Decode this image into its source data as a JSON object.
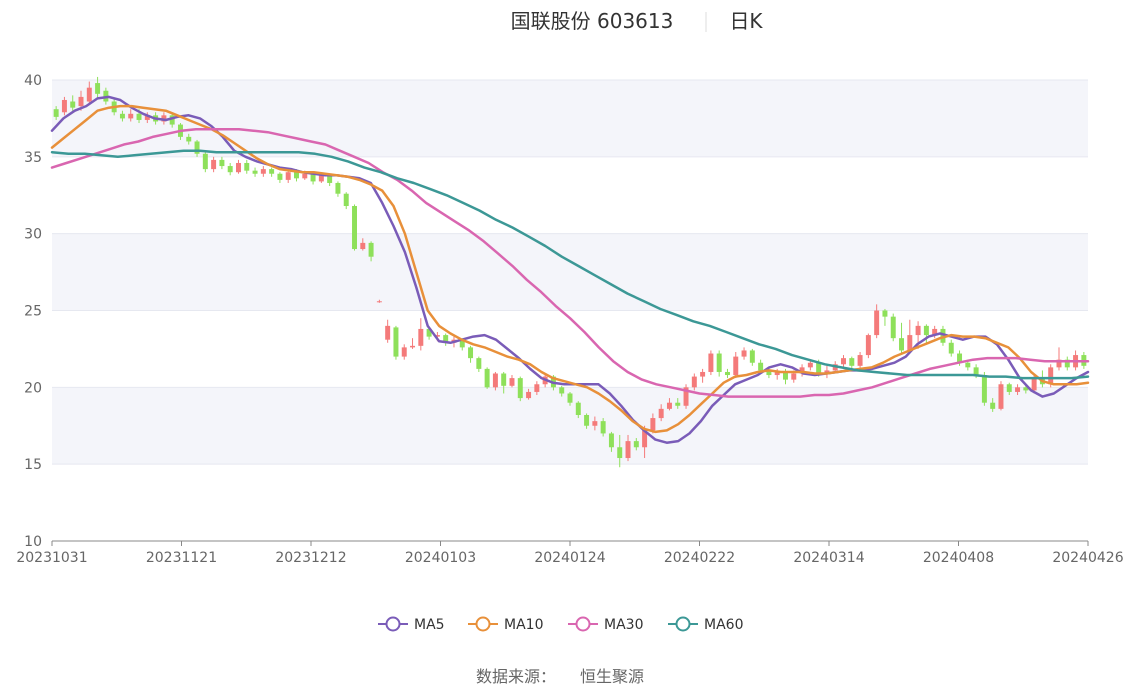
{
  "chart_data": {
    "type": "candlestick",
    "title": "国联股份 603613",
    "subtitle": "日K",
    "source_label": "数据来源：",
    "source_name": "恒生聚源",
    "x_labels": [
      "20231031",
      "20231121",
      "20231212",
      "20240103",
      "20240124",
      "20240222",
      "20240314",
      "20240408",
      "20240426"
    ],
    "y_ticks": [
      10,
      15,
      20,
      25,
      30,
      35,
      40
    ],
    "ylim": [
      10,
      40
    ],
    "grid": "alternating horizontal bands",
    "legend_position": "bottom",
    "colors": {
      "up": "#f47a7a",
      "down": "#8ee05a",
      "band": "#f4f5fa",
      "axis": "#888888"
    },
    "series": [
      {
        "name": "MA5",
        "color": "#7a5cb8",
        "values": [
          36.7,
          37.5,
          38.0,
          38.3,
          38.8,
          38.9,
          38.7,
          38.2,
          37.8,
          37.5,
          37.4,
          37.6,
          37.7,
          37.5,
          37.0,
          36.3,
          35.4,
          35.0,
          34.7,
          34.5,
          34.3,
          34.2,
          34.0,
          33.9,
          33.8,
          33.8,
          33.7,
          33.6,
          33.3,
          32.0,
          30.5,
          28.8,
          26.5,
          24.0,
          23.0,
          22.9,
          23.1,
          23.3,
          23.4,
          23.1,
          22.5,
          21.9,
          21.2,
          20.6,
          20.3,
          20.2,
          20.2,
          20.2,
          20.2,
          19.6,
          18.8,
          17.9,
          17.2,
          16.6,
          16.4,
          16.5,
          17.0,
          17.8,
          18.8,
          19.5,
          20.2,
          20.5,
          20.8,
          21.3,
          21.5,
          21.3,
          20.9,
          20.8,
          20.9,
          21.0,
          21.1,
          21.1,
          21.2,
          21.4,
          21.6,
          22.0,
          22.8,
          23.3,
          23.5,
          23.3,
          23.1,
          23.3,
          23.3,
          22.8,
          21.8,
          20.6,
          19.8,
          19.4,
          19.6,
          20.1,
          20.6,
          21.0
        ]
      },
      {
        "name": "MA10",
        "color": "#e8903a",
        "values": [
          35.6,
          36.2,
          36.8,
          37.4,
          38.0,
          38.2,
          38.3,
          38.3,
          38.2,
          38.1,
          38.0,
          37.7,
          37.4,
          37.1,
          36.8,
          36.4,
          35.9,
          35.4,
          34.9,
          34.5,
          34.2,
          34.1,
          34.0,
          34.0,
          33.9,
          33.8,
          33.7,
          33.5,
          33.2,
          32.8,
          31.8,
          30.0,
          27.5,
          25.0,
          24.0,
          23.5,
          23.1,
          22.8,
          22.6,
          22.3,
          22.0,
          21.8,
          21.5,
          21.0,
          20.6,
          20.4,
          20.2,
          20.0,
          19.6,
          19.1,
          18.5,
          17.8,
          17.3,
          17.1,
          17.2,
          17.6,
          18.2,
          18.9,
          19.6,
          20.3,
          20.7,
          20.8,
          21.0,
          21.1,
          21.0,
          21.0,
          21.0,
          20.9,
          20.9,
          21.0,
          21.1,
          21.2,
          21.3,
          21.6,
          22.0,
          22.3,
          22.6,
          22.9,
          23.2,
          23.4,
          23.3,
          23.3,
          23.2,
          22.9,
          22.6,
          21.9,
          21.0,
          20.4,
          20.2,
          20.2,
          20.2,
          20.3
        ]
      },
      {
        "name": "MA30",
        "color": "#d966b0",
        "values": [
          34.3,
          34.6,
          34.9,
          35.2,
          35.5,
          35.8,
          36.0,
          36.3,
          36.5,
          36.7,
          36.8,
          36.8,
          36.8,
          36.8,
          36.7,
          36.6,
          36.4,
          36.2,
          36.0,
          35.8,
          35.4,
          35.0,
          34.6,
          34.0,
          33.5,
          32.8,
          32.0,
          31.4,
          30.8,
          30.2,
          29.5,
          28.7,
          27.9,
          27.0,
          26.2,
          25.3,
          24.5,
          23.6,
          22.6,
          21.7,
          21.0,
          20.5,
          20.2,
          20.0,
          19.8,
          19.6,
          19.5,
          19.4,
          19.4,
          19.4,
          19.4,
          19.4,
          19.4,
          19.5,
          19.5,
          19.6,
          19.8,
          20.0,
          20.3,
          20.6,
          20.9,
          21.2,
          21.4,
          21.6,
          21.8,
          21.9,
          21.9,
          21.9,
          21.8,
          21.7,
          21.7,
          21.7,
          21.7
        ]
      },
      {
        "name": "MA60",
        "color": "#3c9896",
        "values": [
          35.3,
          35.2,
          35.2,
          35.1,
          35.0,
          35.1,
          35.2,
          35.3,
          35.4,
          35.4,
          35.3,
          35.3,
          35.3,
          35.3,
          35.3,
          35.3,
          35.2,
          35.0,
          34.7,
          34.3,
          34.0,
          33.6,
          33.3,
          32.9,
          32.5,
          32.0,
          31.5,
          30.9,
          30.4,
          29.8,
          29.2,
          28.5,
          27.9,
          27.3,
          26.7,
          26.1,
          25.6,
          25.1,
          24.7,
          24.3,
          24.0,
          23.6,
          23.2,
          22.8,
          22.5,
          22.1,
          21.8,
          21.5,
          21.3,
          21.1,
          21.0,
          20.9,
          20.8,
          20.8,
          20.8,
          20.8,
          20.8,
          20.7,
          20.7,
          20.6,
          20.6,
          20.6,
          20.6,
          20.7
        ]
      }
    ],
    "candles": [
      [
        38.1,
        37.6,
        38.3,
        37.4
      ],
      [
        37.9,
        38.7,
        38.9,
        37.7
      ],
      [
        38.6,
        38.2,
        39.0,
        37.9
      ],
      [
        38.3,
        38.9,
        39.3,
        38.0
      ],
      [
        38.6,
        39.5,
        39.9,
        38.4
      ],
      [
        39.8,
        39.1,
        40.2,
        38.8
      ],
      [
        39.3,
        38.6,
        39.5,
        38.4
      ],
      [
        38.6,
        37.9,
        38.8,
        37.7
      ],
      [
        37.8,
        37.5,
        38.0,
        37.3
      ],
      [
        37.5,
        37.8,
        38.1,
        37.3
      ],
      [
        37.8,
        37.4,
        38.1,
        37.2
      ],
      [
        37.4,
        37.7,
        37.9,
        37.2
      ],
      [
        37.7,
        37.3,
        37.9,
        37.1
      ],
      [
        37.3,
        37.7,
        37.9,
        37.1
      ],
      [
        37.7,
        37.1,
        37.8,
        36.9
      ],
      [
        37.1,
        36.3,
        37.2,
        36.1
      ],
      [
        36.3,
        36.0,
        36.5,
        35.8
      ],
      [
        36.0,
        35.2,
        36.1,
        35.0
      ],
      [
        35.2,
        34.2,
        35.3,
        34.0
      ],
      [
        34.2,
        34.8,
        35.0,
        34.0
      ],
      [
        34.8,
        34.4,
        35.0,
        34.2
      ],
      [
        34.4,
        34.0,
        34.6,
        33.8
      ],
      [
        34.0,
        34.6,
        34.8,
        33.9
      ],
      [
        34.6,
        34.1,
        34.8,
        33.9
      ],
      [
        34.1,
        33.9,
        34.3,
        33.7
      ],
      [
        33.9,
        34.2,
        34.4,
        33.7
      ],
      [
        34.2,
        33.9,
        34.3,
        33.7
      ],
      [
        33.9,
        33.5,
        34.0,
        33.3
      ],
      [
        33.5,
        34.0,
        34.2,
        33.3
      ],
      [
        34.0,
        33.6,
        34.2,
        33.4
      ],
      [
        33.6,
        33.9,
        34.1,
        33.5
      ],
      [
        33.9,
        33.4,
        34.0,
        33.2
      ],
      [
        33.4,
        33.8,
        34.0,
        33.3
      ],
      [
        33.8,
        33.3,
        33.9,
        33.1
      ],
      [
        33.3,
        32.6,
        33.4,
        32.4
      ],
      [
        32.6,
        31.8,
        32.7,
        31.6
      ],
      [
        31.8,
        29.0,
        31.9,
        28.9
      ],
      [
        29.0,
        29.4,
        29.7,
        28.9
      ],
      [
        29.4,
        28.5,
        29.5,
        28.2
      ],
      [
        25.6,
        25.6,
        25.7,
        25.5
      ],
      [
        23.1,
        24.0,
        24.4,
        22.9
      ],
      [
        23.9,
        22.0,
        24.0,
        21.8
      ],
      [
        22.0,
        22.6,
        22.8,
        21.8
      ],
      [
        22.6,
        22.7,
        23.2,
        22.5
      ],
      [
        22.7,
        23.8,
        24.5,
        22.4
      ],
      [
        23.8,
        23.3,
        23.9,
        23.1
      ],
      [
        23.3,
        23.4,
        23.6,
        23.0
      ],
      [
        23.4,
        22.9,
        23.5,
        22.7
      ],
      [
        22.9,
        23.1,
        23.3,
        22.6
      ],
      [
        23.1,
        22.6,
        23.2,
        22.4
      ],
      [
        22.6,
        21.9,
        22.7,
        21.6
      ],
      [
        21.9,
        21.2,
        22.0,
        21.0
      ],
      [
        21.2,
        20.0,
        21.3,
        19.9
      ],
      [
        20.0,
        20.9,
        21.0,
        19.8
      ],
      [
        20.9,
        20.1,
        21.0,
        19.6
      ],
      [
        20.1,
        20.6,
        20.8,
        20.0
      ],
      [
        20.6,
        19.3,
        20.7,
        19.1
      ],
      [
        19.3,
        19.7,
        19.9,
        19.2
      ],
      [
        19.7,
        20.2,
        20.4,
        19.5
      ],
      [
        20.2,
        20.7,
        20.9,
        20.0
      ],
      [
        20.7,
        20.0,
        20.8,
        19.8
      ],
      [
        20.0,
        19.6,
        20.1,
        19.4
      ],
      [
        19.6,
        19.0,
        19.7,
        18.8
      ],
      [
        19.0,
        18.2,
        19.1,
        18.0
      ],
      [
        18.2,
        17.5,
        18.3,
        17.3
      ],
      [
        17.5,
        17.8,
        18.1,
        17.2
      ],
      [
        17.8,
        17.0,
        18.0,
        16.8
      ],
      [
        17.0,
        16.1,
        17.1,
        15.8
      ],
      [
        16.1,
        15.4,
        16.9,
        14.8
      ],
      [
        15.4,
        16.5,
        16.9,
        15.2
      ],
      [
        16.5,
        16.1,
        16.7,
        15.9
      ],
      [
        16.1,
        17.2,
        17.5,
        15.4
      ],
      [
        17.2,
        18.0,
        18.3,
        17.0
      ],
      [
        18.0,
        18.6,
        18.9,
        17.8
      ],
      [
        18.6,
        19.0,
        19.3,
        18.5
      ],
      [
        19.0,
        18.8,
        19.3,
        18.6
      ],
      [
        18.8,
        20.0,
        20.2,
        18.6
      ],
      [
        20.0,
        20.7,
        20.9,
        19.8
      ],
      [
        20.7,
        21.0,
        21.2,
        20.3
      ],
      [
        21.0,
        22.2,
        22.4,
        20.8
      ],
      [
        22.2,
        21.0,
        22.4,
        20.7
      ],
      [
        21.0,
        20.8,
        21.2,
        20.6
      ],
      [
        20.8,
        22.0,
        22.3,
        20.6
      ],
      [
        22.0,
        22.4,
        22.6,
        21.8
      ],
      [
        22.4,
        21.6,
        22.5,
        21.4
      ],
      [
        21.6,
        21.1,
        21.8,
        20.9
      ],
      [
        21.1,
        20.8,
        21.3,
        20.6
      ],
      [
        20.8,
        21.0,
        21.2,
        20.5
      ],
      [
        21.0,
        20.5,
        21.2,
        20.2
      ],
      [
        20.5,
        20.9,
        21.1,
        20.3
      ],
      [
        20.9,
        21.3,
        21.5,
        20.7
      ],
      [
        21.3,
        21.6,
        21.8,
        21.1
      ],
      [
        21.6,
        20.9,
        21.8,
        20.7
      ],
      [
        20.9,
        21.1,
        21.4,
        20.6
      ],
      [
        21.1,
        21.5,
        21.7,
        20.9
      ],
      [
        21.5,
        21.9,
        22.1,
        21.3
      ],
      [
        21.9,
        21.4,
        22.0,
        21.2
      ],
      [
        21.4,
        22.1,
        22.3,
        21.2
      ],
      [
        22.1,
        23.4,
        23.5,
        21.9
      ],
      [
        23.4,
        25.0,
        25.4,
        23.2
      ],
      [
        25.0,
        24.6,
        25.1,
        24.0
      ],
      [
        24.6,
        23.2,
        24.8,
        23.0
      ],
      [
        23.2,
        22.4,
        24.2,
        22.2
      ],
      [
        22.4,
        23.4,
        24.4,
        22.2
      ],
      [
        23.4,
        24.0,
        24.3,
        22.5
      ],
      [
        24.0,
        23.4,
        24.1,
        22.9
      ],
      [
        23.4,
        23.8,
        24.0,
        23.2
      ],
      [
        23.8,
        22.9,
        24.0,
        22.7
      ],
      [
        22.9,
        22.2,
        23.1,
        22.0
      ],
      [
        22.2,
        21.6,
        22.4,
        21.4
      ],
      [
        21.6,
        21.3,
        21.8,
        21.1
      ],
      [
        21.3,
        20.8,
        21.5,
        20.6
      ],
      [
        20.8,
        19.0,
        21.0,
        18.8
      ],
      [
        19.0,
        18.6,
        19.3,
        18.4
      ],
      [
        18.6,
        20.2,
        20.4,
        18.5
      ],
      [
        20.2,
        19.7,
        20.3,
        19.5
      ],
      [
        19.7,
        20.0,
        20.2,
        19.5
      ],
      [
        20.0,
        19.8,
        20.2,
        19.6
      ],
      [
        19.8,
        20.6,
        20.8,
        19.6
      ],
      [
        20.6,
        20.2,
        21.1,
        20.0
      ],
      [
        20.2,
        21.3,
        21.5,
        20.0
      ],
      [
        21.3,
        21.8,
        22.6,
        21.1
      ],
      [
        21.8,
        21.3,
        22.0,
        21.1
      ],
      [
        21.3,
        22.1,
        22.4,
        21.1
      ],
      [
        22.1,
        21.4,
        22.3,
        21.2
      ]
    ]
  },
  "legend": [
    {
      "label": "MA5",
      "color": "#7a5cb8"
    },
    {
      "label": "MA10",
      "color": "#e8903a"
    },
    {
      "label": "MA30",
      "color": "#d966b0"
    },
    {
      "label": "MA60",
      "color": "#3c9896"
    }
  ]
}
